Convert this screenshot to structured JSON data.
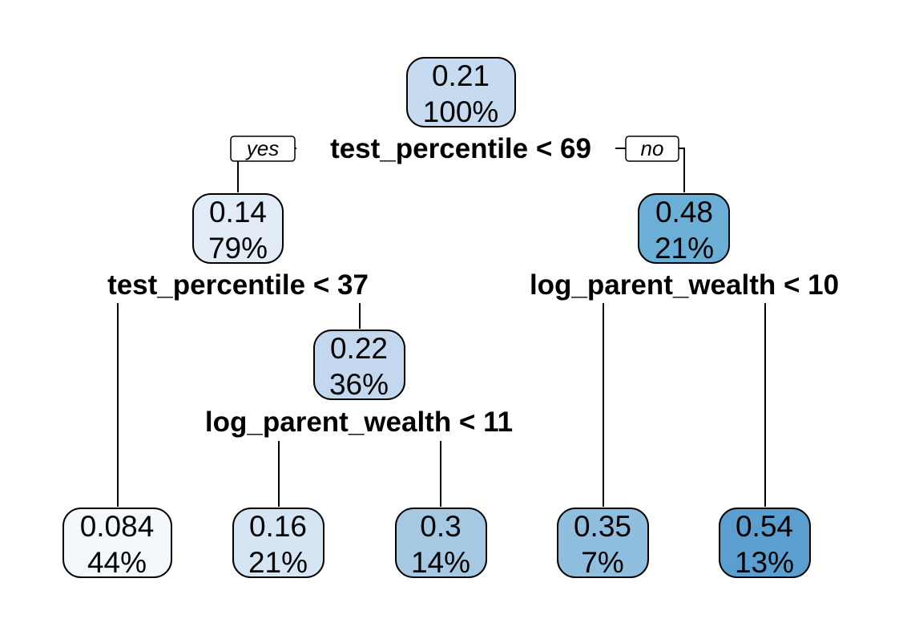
{
  "chart_data": {
    "type": "decision_tree",
    "branch_labels": {
      "yes": "yes",
      "no": "no"
    },
    "splits": [
      {
        "id": "s1",
        "label": "test_percentile < 69"
      },
      {
        "id": "s2",
        "label": "test_percentile < 37"
      },
      {
        "id": "s3",
        "label": "log_parent_wealth < 10"
      },
      {
        "id": "s4",
        "label": "log_parent_wealth < 11"
      }
    ],
    "nodes": [
      {
        "id": "n1",
        "value": "0.21",
        "percent": "100%",
        "color": "#c6dbef"
      },
      {
        "id": "n2",
        "value": "0.14",
        "percent": "79%",
        "color": "#e1ecf7"
      },
      {
        "id": "n3",
        "value": "0.48",
        "percent": "21%",
        "color": "#6baed6"
      },
      {
        "id": "n4",
        "value": "0.22",
        "percent": "36%",
        "color": "#c3d8ee"
      },
      {
        "id": "n5",
        "value": "0.084",
        "percent": "44%",
        "color": "#f3f8fd"
      },
      {
        "id": "n6",
        "value": "0.16",
        "percent": "21%",
        "color": "#d6e5f4"
      },
      {
        "id": "n7",
        "value": "0.3",
        "percent": "14%",
        "color": "#a6c9e3"
      },
      {
        "id": "n8",
        "value": "0.35",
        "percent": "7%",
        "color": "#8fbedf"
      },
      {
        "id": "n9",
        "value": "0.54",
        "percent": "13%",
        "color": "#5a9fcf"
      }
    ]
  }
}
